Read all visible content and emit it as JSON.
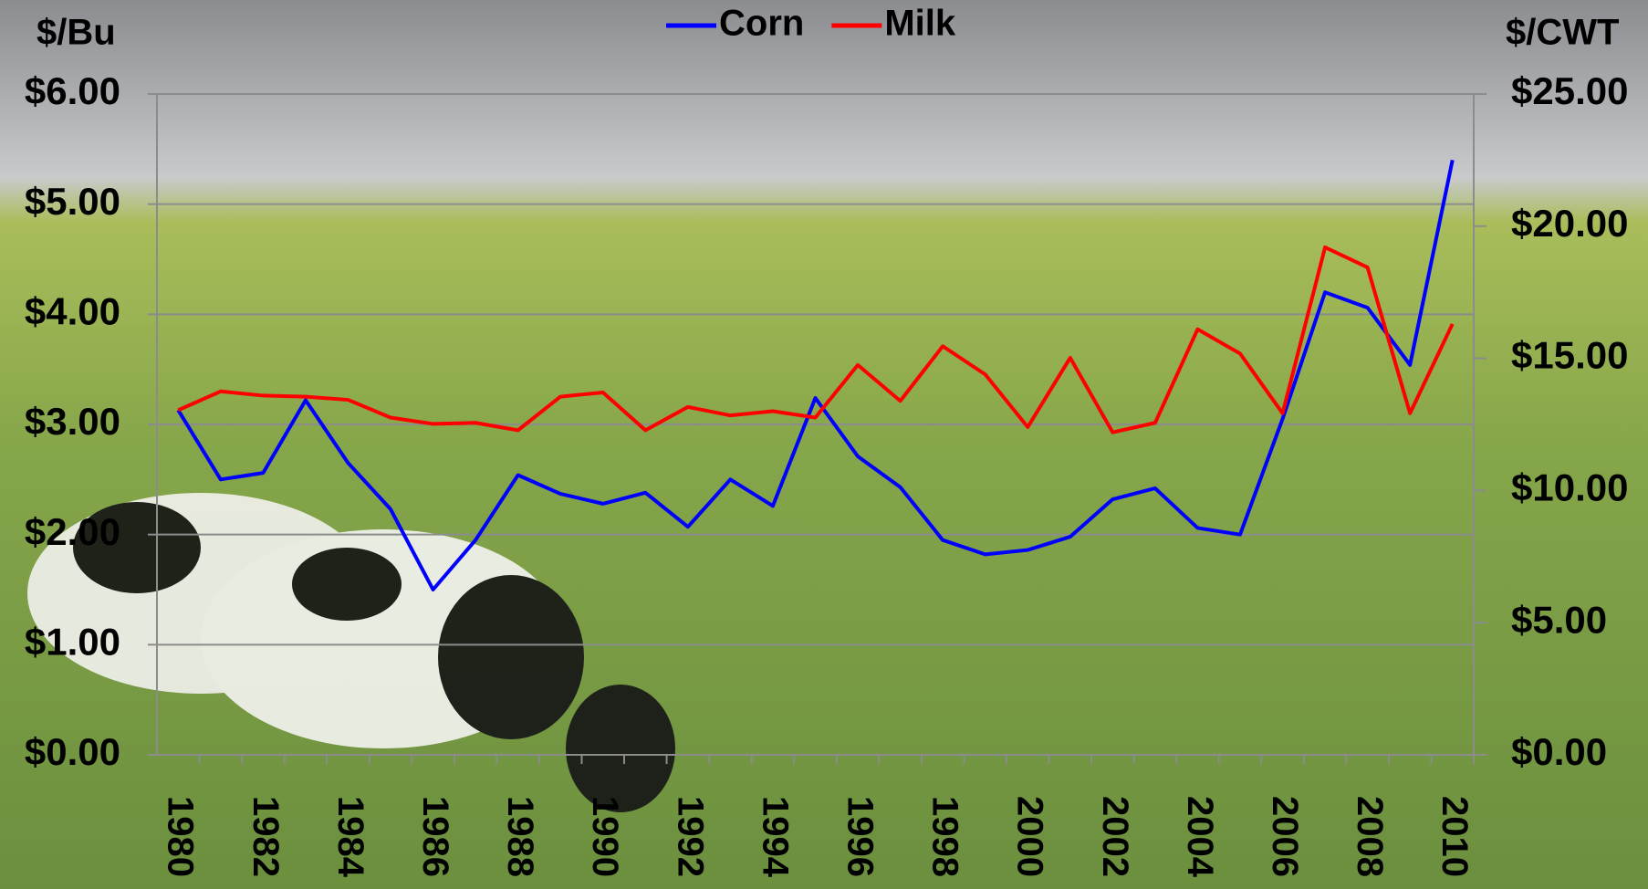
{
  "chart_data": {
    "type": "line",
    "y_label": "$/Bu",
    "y2_label": "$/CWT",
    "categories": [
      "1980",
      null,
      "1982",
      null,
      "1984",
      null,
      "1986",
      null,
      "1988",
      null,
      "1990",
      null,
      "1992",
      null,
      "1994",
      null,
      "1996",
      null,
      "1998",
      null,
      "2000",
      null,
      "2002",
      null,
      "2004",
      null,
      "2006",
      null,
      "2008",
      null,
      "2010"
    ],
    "series": [
      {
        "name": "Corn",
        "color": "#0000ff",
        "values": [
          3.13,
          2.5,
          2.56,
          3.22,
          2.65,
          2.23,
          1.5,
          1.95,
          2.54,
          2.37,
          2.28,
          2.38,
          2.07,
          2.5,
          2.26,
          3.24,
          2.71,
          2.43,
          1.95,
          1.82,
          1.86,
          1.98,
          2.32,
          2.42,
          2.06,
          2.0,
          3.05,
          4.2,
          4.06,
          3.54,
          5.4
        ]
      },
      {
        "name": "Milk",
        "color": "#ff0000",
        "axis": "y2",
        "values": [
          13.04,
          13.75,
          13.59,
          13.55,
          13.43,
          12.76,
          12.52,
          12.56,
          12.28,
          13.55,
          13.71,
          12.28,
          13.16,
          12.84,
          13.0,
          12.76,
          14.75,
          13.39,
          15.46,
          14.39,
          12.4,
          15.02,
          12.2,
          12.56,
          16.1,
          15.18,
          12.92,
          19.2,
          18.44,
          12.92,
          16.3
        ]
      }
    ],
    "ylim": [
      0,
      6
    ],
    "yticks": [
      {
        "value": 0,
        "label": "$0.00"
      },
      {
        "value": 1,
        "label": "$1.00"
      },
      {
        "value": 2,
        "label": "$2.00"
      },
      {
        "value": 3,
        "label": "$3.00"
      },
      {
        "value": 4,
        "label": "$4.00"
      },
      {
        "value": 5,
        "label": "$5.00"
      },
      {
        "value": 6,
        "label": "$6.00"
      }
    ],
    "y2lim": [
      0,
      25
    ],
    "y2ticks": [
      {
        "value": 0,
        "label": "$0.00"
      },
      {
        "value": 5,
        "label": "$5.00"
      },
      {
        "value": 10,
        "label": "$10.00"
      },
      {
        "value": 15,
        "label": "$15.00"
      },
      {
        "value": 20,
        "label": "$20.00"
      },
      {
        "value": 25,
        "label": "$25.00"
      }
    ],
    "grid": true,
    "legend": "top"
  }
}
